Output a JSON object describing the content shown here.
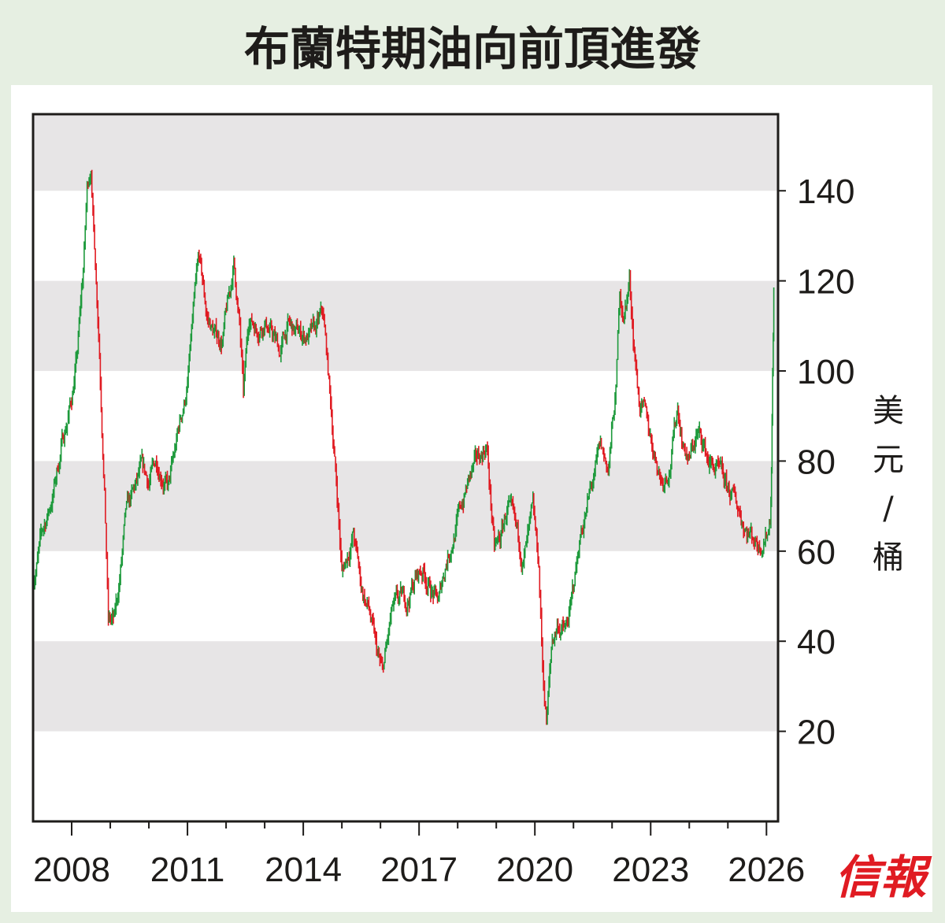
{
  "title": "布蘭特期油向前頂進發",
  "brand": "信報",
  "colors": {
    "background": "#e6efe2",
    "panel": "#ffffff",
    "band": "#e7e5e6",
    "up": "#1e9a3c",
    "down": "#e01b22",
    "axis": "#1e1c1a"
  },
  "chart_data": {
    "type": "line",
    "title": "布蘭特期油向前頂進發",
    "xlabel": "",
    "ylabel": "美元/桶",
    "unit_chars": [
      "美",
      "元",
      "/",
      "桶"
    ],
    "xlim": [
      2007.0,
      2026.3
    ],
    "ylim": [
      0,
      157
    ],
    "x_ticks": [
      2008,
      2011,
      2014,
      2017,
      2020,
      2023,
      2026
    ],
    "x_tick_labels": [
      "2008",
      "2011",
      "2014",
      "2017",
      "2020",
      "2023",
      "2026"
    ],
    "x_minor_ticks": [
      2009,
      2010,
      2012,
      2013,
      2015,
      2016,
      2018,
      2019,
      2021,
      2022,
      2024,
      2025
    ],
    "y_ticks": [
      20,
      40,
      60,
      80,
      100,
      120,
      140
    ],
    "y_tick_labels": [
      "20",
      "40",
      "60",
      "80",
      "100",
      "120",
      "140"
    ],
    "shaded_bands": [
      [
        20,
        40
      ],
      [
        60,
        80
      ],
      [
        100,
        120
      ],
      [
        140,
        157
      ]
    ],
    "series": [
      {
        "x": [
          2007.0,
          2007.25,
          2007.5,
          2007.75,
          2008.0,
          2008.15,
          2008.3,
          2008.4,
          2008.5,
          2008.55,
          2008.7,
          2008.85,
          2008.95,
          2009.1,
          2009.2,
          2009.4,
          2009.6,
          2009.8,
          2010.0,
          2010.2,
          2010.35,
          2010.5,
          2010.65,
          2010.8,
          2011.0,
          2011.15,
          2011.3,
          2011.5,
          2011.7,
          2011.9,
          2012.1,
          2012.2,
          2012.35,
          2012.45,
          2012.6,
          2012.8,
          2013.0,
          2013.2,
          2013.4,
          2013.6,
          2013.8,
          2014.0,
          2014.3,
          2014.5,
          2014.6,
          2014.75,
          2014.9,
          2015.0,
          2015.1,
          2015.3,
          2015.5,
          2015.7,
          2015.9,
          2016.05,
          2016.3,
          2016.5,
          2016.7,
          2016.9,
          2017.1,
          2017.3,
          2017.5,
          2017.7,
          2017.9,
          2018.1,
          2018.3,
          2018.5,
          2018.75,
          2018.95,
          2019.1,
          2019.3,
          2019.5,
          2019.7,
          2019.95,
          2020.1,
          2020.2,
          2020.3,
          2020.45,
          2020.6,
          2020.8,
          2020.95,
          2021.2,
          2021.5,
          2021.7,
          2021.9,
          2022.1,
          2022.2,
          2022.3,
          2022.45,
          2022.55,
          2022.7,
          2022.9,
          2023.1,
          2023.3,
          2023.5,
          2023.7,
          2023.85,
          2024.0,
          2024.2,
          2024.35,
          2024.5,
          2024.7,
          2024.9,
          2025.1,
          2025.3,
          2025.45,
          2025.6,
          2025.8,
          2025.95,
          2026.05,
          2026.1,
          2026.13,
          2026.16,
          2026.19
        ],
        "y": [
          54,
          64,
          72,
          84,
          94,
          104,
          122,
          140,
          146,
          135,
          110,
          75,
          45,
          44,
          50,
          67,
          72,
          77,
          75,
          80,
          78,
          74,
          80,
          88,
          97,
          112,
          124,
          112,
          108,
          107,
          117,
          124,
          110,
          94,
          112,
          110,
          112,
          108,
          104,
          110,
          108,
          108,
          108,
          112,
          104,
          88,
          70,
          55,
          58,
          64,
          52,
          47,
          37,
          32,
          46,
          48,
          49,
          54,
          56,
          52,
          48,
          58,
          64,
          70,
          76,
          79,
          84,
          60,
          62,
          70,
          63,
          58,
          67,
          56,
          34,
          22,
          40,
          44,
          42,
          48,
          65,
          75,
          82,
          78,
          95,
          118,
          112,
          120,
          108,
          94,
          88,
          82,
          76,
          80,
          92,
          84,
          80,
          86,
          84,
          80,
          78,
          74,
          72,
          69,
          66,
          64,
          62,
          64,
          66,
          68,
          80,
          100,
          118
        ]
      }
    ]
  }
}
